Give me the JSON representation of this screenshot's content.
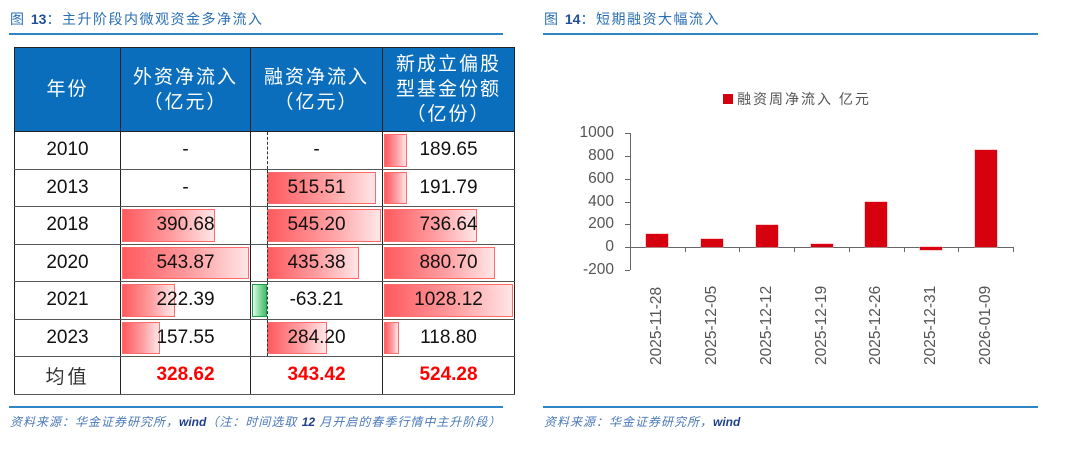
{
  "left_figure": {
    "number": "13",
    "prefix": "图",
    "title": "主升阶段内微观资金多净流入",
    "table": {
      "headers": [
        "年份",
        "外资净流入（亿元）",
        "融资净流入（亿元）",
        "新成立偏股型基金份额（亿份）"
      ],
      "header_lines": [
        [
          "年份"
        ],
        [
          "外资净流入",
          "（亿元）"
        ],
        [
          "融资净流入",
          "（亿元）"
        ],
        [
          "新成立偏股",
          "型基金份额",
          "（亿份）"
        ]
      ],
      "rows": [
        {
          "year": "2010",
          "foreign": "-",
          "margin": "-",
          "fund": "189.65"
        },
        {
          "year": "2013",
          "foreign": "-",
          "margin": "515.51",
          "fund": "191.79"
        },
        {
          "year": "2018",
          "foreign": "390.68",
          "margin": "545.20",
          "fund": "736.64"
        },
        {
          "year": "2020",
          "foreign": "543.87",
          "margin": "435.38",
          "fund": "880.70"
        },
        {
          "year": "2021",
          "foreign": "222.39",
          "margin": "-63.21",
          "fund": "1028.12"
        },
        {
          "year": "2023",
          "foreign": "157.55",
          "margin": "284.20",
          "fund": "118.80"
        }
      ],
      "average": {
        "label": "均值",
        "foreign": "328.62",
        "margin": "343.42",
        "fund": "524.28"
      },
      "data_bars": {
        "foreign_pct": [
          0,
          0,
          73,
          100,
          42,
          30
        ],
        "margin_pct": [
          0,
          95,
          100,
          80,
          -12,
          52
        ],
        "fund_pct": [
          18,
          18,
          72,
          86,
          100,
          12
        ]
      },
      "colors": {
        "header_bg": "#0a6ebd",
        "positive_bar": "#ff5a5e",
        "negative_bar": "#3fbf6a",
        "average_text": "#ff0000"
      }
    },
    "source": {
      "label": "资料来源：华金证券研究所，",
      "wind": "wind",
      "note_prefix": "（注：时间选取",
      "note_num": "12",
      "note_suffix": "月开启的春季行情中主升阶段）"
    }
  },
  "right_figure": {
    "number": "14",
    "prefix": "图",
    "title": "短期融资大幅流入",
    "source": {
      "label": "资料来源：华金证券研究所，",
      "wind": "wind"
    }
  },
  "chart_data": {
    "type": "bar",
    "title": "短期融资大幅流入",
    "categories": [
      "2025-11-28",
      "2025-12-05",
      "2025-12-12",
      "2025-12-19",
      "2025-12-26",
      "2025-12-31",
      "2026-01-09"
    ],
    "series": [
      {
        "name": "融资周净流入 亿元",
        "color": "#d7000f",
        "values": [
          115,
          75,
          195,
          30,
          395,
          -25,
          855
        ]
      }
    ],
    "xlabel": "",
    "ylabel": "",
    "ylim": [
      -200,
      1000
    ],
    "yticks": [
      "1000",
      "800",
      "600",
      "400",
      "200",
      "0",
      "-200"
    ],
    "legend_position": "top",
    "grid": false
  }
}
